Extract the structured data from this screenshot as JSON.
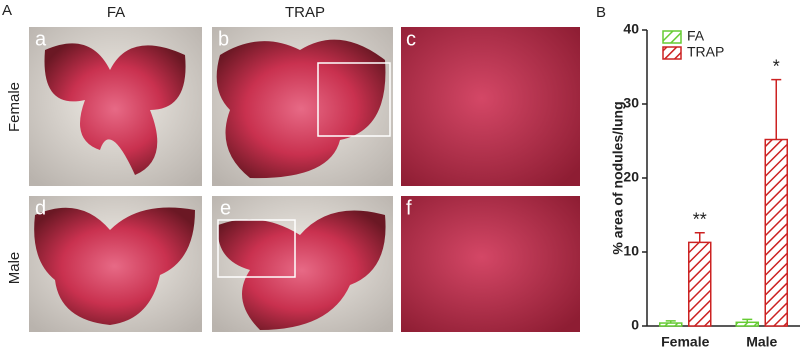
{
  "figure": {
    "panel_a_label": "A",
    "panel_b_label": "B",
    "column_labels": [
      "FA",
      "TRAP"
    ],
    "row_labels": [
      "Female",
      "Male"
    ],
    "subpanel_labels": [
      "a",
      "b",
      "c",
      "d",
      "e",
      "f"
    ]
  },
  "chart_data": {
    "type": "bar",
    "y_label": "% area of nodules/lung",
    "categories": [
      "Female",
      "Male"
    ],
    "series": [
      {
        "name": "FA",
        "color": "#66cc33",
        "values": [
          0.4,
          0.5
        ],
        "errors": [
          0.3,
          0.4
        ]
      },
      {
        "name": "TRAP",
        "color": "#cc2222",
        "values": [
          11.3,
          25.2
        ],
        "errors": [
          1.3,
          8.1
        ]
      }
    ],
    "annotations": [
      "**",
      "*"
    ],
    "ylim": [
      0,
      40
    ],
    "yticks": [
      0,
      10,
      20,
      30,
      40
    ],
    "legend": "top-left"
  }
}
